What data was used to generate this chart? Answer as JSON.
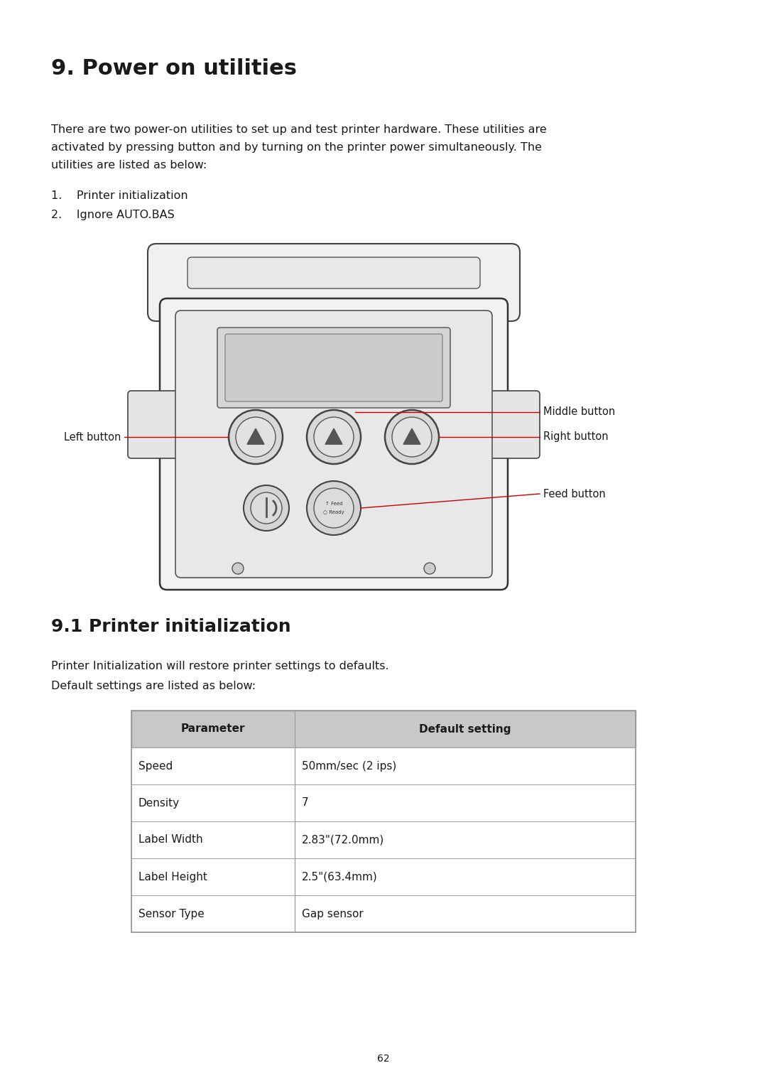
{
  "title": "9. Power on utilities",
  "section_title": "9.1 Printer initialization",
  "body_text_line1": "There are two power-on utilities to set up and test printer hardware. These utilities are",
  "body_text_line2": "activated by pressing button and by turning on the printer power simultaneously. The",
  "body_text_line3": "utilities are listed as below:",
  "list_item1": "1.    Printer initialization",
  "list_item2": "2.    Ignore AUTO.BAS",
  "section_body1": "Printer Initialization will restore printer settings to defaults.",
  "section_body2": "Default settings are listed as below:",
  "table_headers": [
    "Parameter",
    "Default setting"
  ],
  "table_rows": [
    [
      "Speed",
      "50mm/sec (2 ips)"
    ],
    [
      "Density",
      "7"
    ],
    [
      "Label Width",
      "2.83\"(72.0mm)"
    ],
    [
      "Label Height",
      "2.5\"(63.4mm)"
    ],
    [
      "Sensor Type",
      "Gap sensor"
    ]
  ],
  "page_number": "62",
  "bg_color": "#ffffff",
  "text_color": "#1a1a1a",
  "red_color": "#cc0000",
  "header_bg": "#c8c8c8",
  "table_border": "#999999",
  "ann_middle": "Middle button",
  "ann_left": "Left button",
  "ann_right": "Right button",
  "ann_feed": "Feed button",
  "title_fontsize": 22,
  "section_fontsize": 18,
  "body_fontsize": 11.5,
  "annot_fontsize": 10.5,
  "table_fontsize": 11
}
